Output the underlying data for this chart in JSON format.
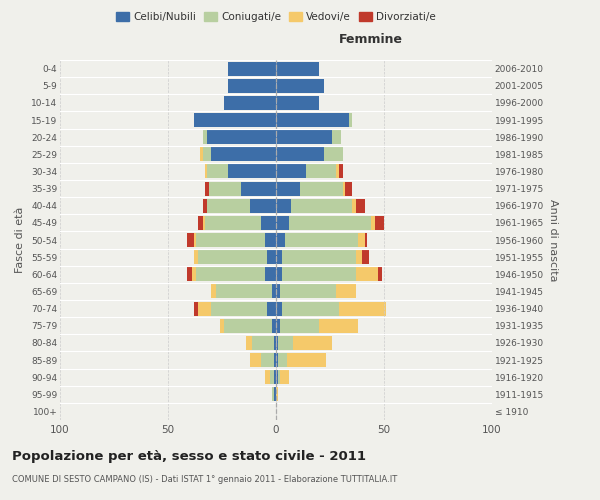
{
  "age_groups": [
    "100+",
    "95-99",
    "90-94",
    "85-89",
    "80-84",
    "75-79",
    "70-74",
    "65-69",
    "60-64",
    "55-59",
    "50-54",
    "45-49",
    "40-44",
    "35-39",
    "30-34",
    "25-29",
    "20-24",
    "15-19",
    "10-14",
    "5-9",
    "0-4"
  ],
  "birth_years": [
    "≤ 1910",
    "1911-1915",
    "1916-1920",
    "1921-1925",
    "1926-1930",
    "1931-1935",
    "1936-1940",
    "1941-1945",
    "1946-1950",
    "1951-1955",
    "1956-1960",
    "1961-1965",
    "1966-1970",
    "1971-1975",
    "1976-1980",
    "1981-1985",
    "1986-1990",
    "1991-1995",
    "1996-2000",
    "2001-2005",
    "2006-2010"
  ],
  "male_celibe": [
    0,
    1,
    1,
    1,
    1,
    2,
    4,
    2,
    5,
    4,
    5,
    7,
    12,
    16,
    22,
    30,
    32,
    38,
    24,
    22,
    22
  ],
  "male_coniugato": [
    0,
    1,
    2,
    6,
    10,
    22,
    26,
    26,
    32,
    32,
    32,
    26,
    20,
    15,
    10,
    4,
    2,
    0,
    0,
    0,
    0
  ],
  "male_vedovo": [
    0,
    0,
    2,
    5,
    3,
    2,
    6,
    2,
    2,
    2,
    1,
    1,
    0,
    0,
    1,
    1,
    0,
    0,
    0,
    0,
    0
  ],
  "male_divorziato": [
    0,
    0,
    0,
    0,
    0,
    0,
    2,
    0,
    2,
    0,
    3,
    2,
    2,
    2,
    0,
    0,
    0,
    0,
    0,
    0,
    0
  ],
  "female_celibe": [
    0,
    0,
    1,
    1,
    1,
    2,
    3,
    2,
    3,
    3,
    4,
    6,
    7,
    11,
    14,
    22,
    26,
    34,
    20,
    22,
    20
  ],
  "female_coniugata": [
    0,
    0,
    1,
    4,
    7,
    18,
    26,
    26,
    34,
    34,
    34,
    38,
    28,
    20,
    14,
    9,
    4,
    1,
    0,
    0,
    0
  ],
  "female_vedova": [
    0,
    1,
    4,
    18,
    18,
    18,
    22,
    9,
    10,
    3,
    3,
    2,
    2,
    1,
    1,
    0,
    0,
    0,
    0,
    0,
    0
  ],
  "female_divorziata": [
    0,
    0,
    0,
    0,
    0,
    0,
    0,
    0,
    2,
    3,
    1,
    4,
    4,
    3,
    2,
    0,
    0,
    0,
    0,
    0,
    0
  ],
  "color_celibe": "#3d6ea8",
  "color_coniugato": "#b8cfa0",
  "color_vedovo": "#f5c96a",
  "color_divorziato": "#c0392b",
  "xlim": 100,
  "title": "Popolazione per età, sesso e stato civile - 2011",
  "subtitle": "COMUNE DI SESTO CAMPANO (IS) - Dati ISTAT 1° gennaio 2011 - Elaborazione TUTTITALIA.IT",
  "ylabel_left": "Fasce di età",
  "ylabel_right": "Anni di nascita",
  "xlabel_femmine": "Femmine",
  "legend_labels": [
    "Celibi/Nubili",
    "Coniugati/e",
    "Vedovi/e",
    "Divorziati/e"
  ],
  "background_color": "#f0f0eb"
}
